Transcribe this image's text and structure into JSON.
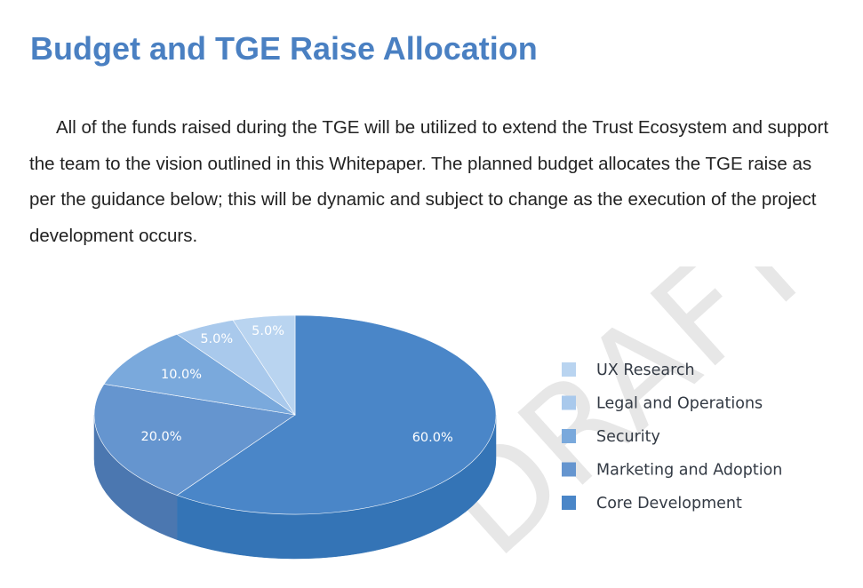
{
  "heading": "Budget and TGE Raise Allocation",
  "body_text": "All of the funds raised during the TGE will be utilized to extend the Trust Ecosystem and support the team to the vision outlined in this Whitepaper. The planned budget allocates the TGE raise as per the guidance below; this will be dynamic and subject to change as the execution of the project development occurs.",
  "watermark": "DRAFT",
  "chart_data": {
    "type": "pie",
    "style": "3d",
    "legend_position": "right",
    "categories": [
      "UX Research",
      "Legal and Operations",
      "Security",
      "Marketing and Adoption",
      "Core Development"
    ],
    "values": [
      5.0,
      5.0,
      10.0,
      20.0,
      60.0
    ],
    "labels": [
      "5.0%",
      "5.0%",
      "10.0%",
      "20.0%",
      "60.0%"
    ],
    "colors": [
      "#b9d4f0",
      "#a9c9ec",
      "#7aa9dc",
      "#6595cf",
      "#4a86c8"
    ],
    "side_colors": [
      "#92b2d4",
      "#85a8d0",
      "#5b88be",
      "#4b77b0",
      "#3474b6"
    ]
  }
}
